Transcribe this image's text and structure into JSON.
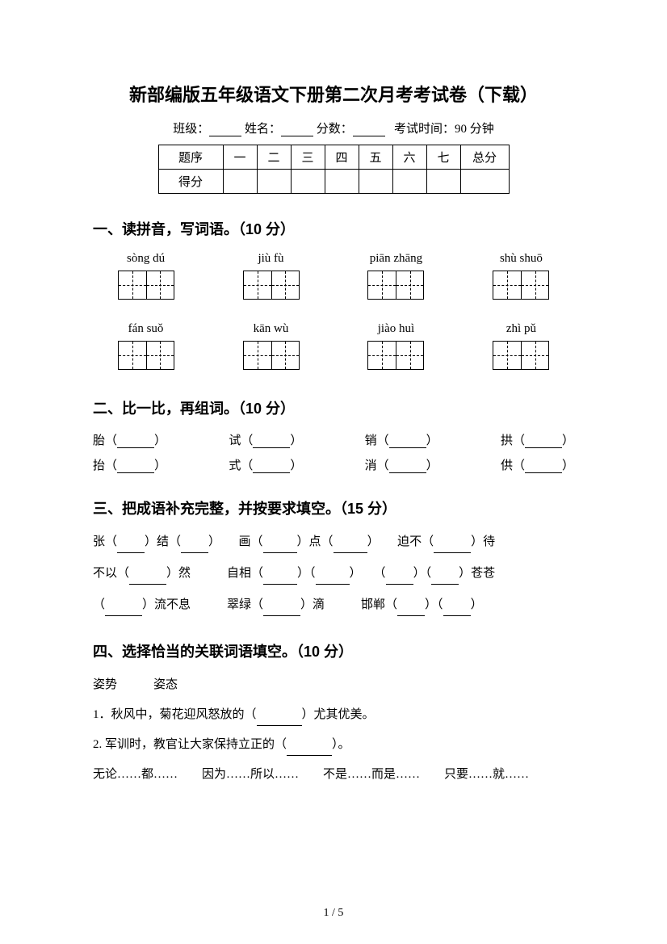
{
  "title": "新部编版五年级语文下册第二次月考考试卷（下载）",
  "info": {
    "class_label": "班级：",
    "name_label": "姓名：",
    "score_label": "分数：",
    "time_label": "考试时间：90 分钟"
  },
  "score_table": {
    "row1_label": "题序",
    "cols": [
      "一",
      "二",
      "三",
      "四",
      "五",
      "六",
      "七"
    ],
    "total_label": "总分",
    "row2_label": "得分"
  },
  "section1": {
    "title": "一、读拼音，写词语。（10 分）",
    "row1": [
      "sòng dú",
      "jiù fù",
      "piān zhāng",
      "shù shuō"
    ],
    "row2": [
      "fán suǒ",
      "kān wù",
      "jiào huì",
      "zhì pǔ"
    ]
  },
  "section2": {
    "title": "二、比一比，再组词。（10 分）",
    "pairs": [
      {
        "a": "胎",
        "b": "抬"
      },
      {
        "a": "试",
        "b": "式"
      },
      {
        "a": "销",
        "b": "消"
      },
      {
        "a": "拱",
        "b": "供"
      }
    ]
  },
  "section3": {
    "title": "三、把成语补充完整，并按要求填空。（15 分）",
    "line1": {
      "p1": "张（",
      "p2": "）结（",
      "p3": "）　　画（",
      "p4": "）点（",
      "p5": "）　　迫不（",
      "p6": "）待"
    },
    "line2": {
      "p1": "不以（",
      "p2": "）然　　　自相（",
      "p3": "）（",
      "p4": "）　　（",
      "p5": "）（",
      "p6": "）苍苍"
    },
    "line3": {
      "p1": "（",
      "p2": "）流不息　　　翠绿（",
      "p3": "）滴　　　邯郸（",
      "p4": "）（",
      "p5": "）"
    }
  },
  "section4": {
    "title": "四、选择恰当的关联词语填空。（10 分）",
    "words": "姿势　　　姿态",
    "q1_a": "1．秋风中，菊花迎风怒放的（",
    "q1_b": "）尤其优美。",
    "q2_a": "2. 军训时，教官让大家保持立正的（",
    "q2_b": "）。",
    "conj": "无论……都……　　因为……所以……　　不是……而是……　　只要……就……"
  },
  "page_num": "1 / 5"
}
